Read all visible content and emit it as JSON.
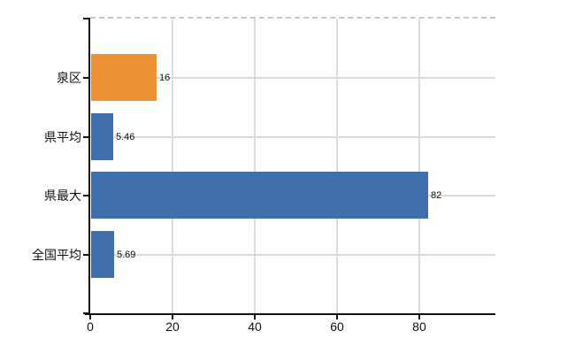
{
  "chart_data": {
    "type": "bar",
    "orientation": "horizontal",
    "title": "",
    "categories": [
      "泉区",
      "県平均",
      "県最大",
      "全国平均"
    ],
    "values": [
      16,
      5.46,
      82,
      5.69
    ],
    "value_labels": [
      "16",
      "5.46",
      "82",
      "5.69"
    ],
    "bar_colors": [
      "#ED9036",
      "#416FAE",
      "#416FAE",
      "#416FAE"
    ],
    "x_ticks": [
      0,
      20,
      40,
      60,
      80
    ],
    "x_tick_labels": [
      "0",
      "20",
      "40",
      "60",
      "80"
    ],
    "xlim": [
      0,
      98.5
    ],
    "grid": true,
    "legend": "none"
  },
  "style": {
    "background_color": "#FFFFFF",
    "axis_color": "#111111",
    "grid_color": "#D7DDD3",
    "top_border_color": "#C8C8C8",
    "text_color": "#111111",
    "highlight_bar_color": "#ED9036",
    "default_bar_color": "#416FAE"
  }
}
